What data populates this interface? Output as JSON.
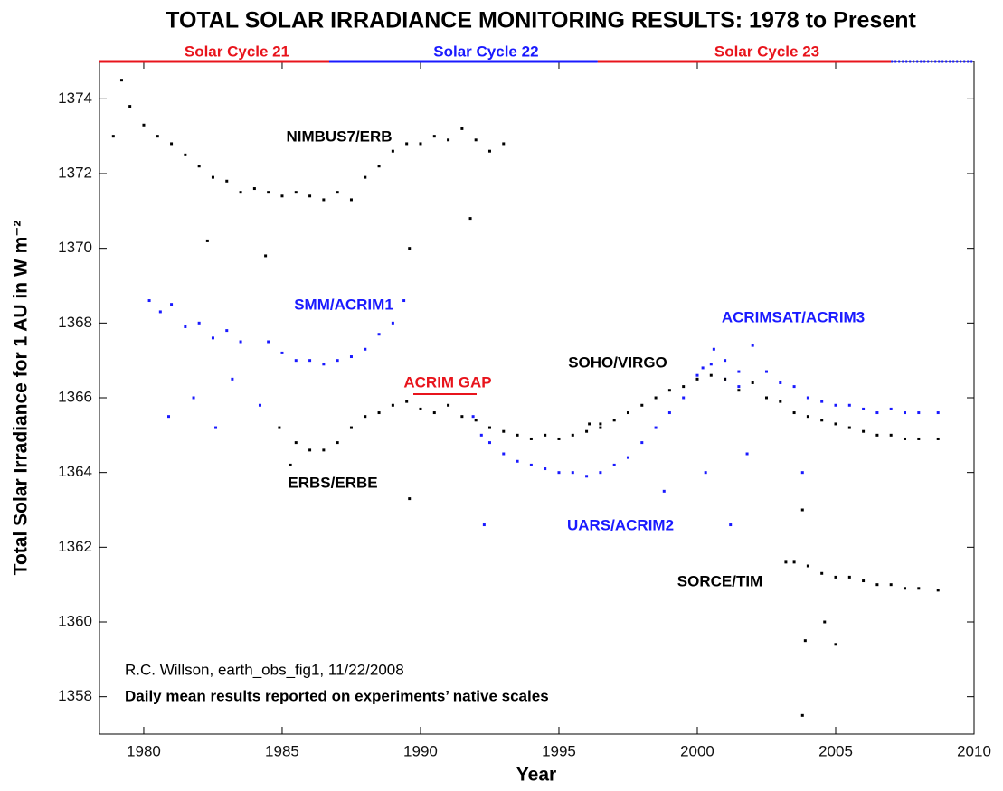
{
  "chart_data": {
    "type": "scatter",
    "title": "TOTAL SOLAR IRRADIANCE MONITORING RESULTS: 1978 to Present",
    "xlabel": "Year",
    "ylabel": "Total Solar Irradiance for 1 AU in W m⁻²",
    "xlim": [
      1978.4,
      2010
    ],
    "ylim": [
      1357,
      1375
    ],
    "xticks": [
      1980,
      1985,
      1990,
      1995,
      2000,
      2005,
      2010
    ],
    "yticks": [
      1358,
      1360,
      1362,
      1364,
      1366,
      1368,
      1370,
      1372,
      1374
    ],
    "cycles": [
      {
        "name": "Solar Cycle 21",
        "start": 1978.4,
        "end": 1986.7,
        "color": "#e8141c"
      },
      {
        "name": "Solar Cycle 22",
        "start": 1986.7,
        "end": 1996.4,
        "color": "#1a1aff"
      },
      {
        "name": "Solar Cycle 23",
        "start": 1996.4,
        "end": 2007,
        "color": "#e8141c"
      },
      {
        "start": 2007,
        "end": 2010,
        "color": "#1a1aff",
        "dotted": true
      }
    ],
    "annotations": [
      {
        "text": "ACRIM GAP",
        "color": "#e8141c"
      }
    ],
    "notes": [
      "R.C. Willson, earth_obs_fig1, 11/22/2008",
      "Daily mean results reported on experiments’ native scales"
    ],
    "series": [
      {
        "name": "NIMBUS7/ERB",
        "color": "#000000",
        "x": [
          1978.9,
          1979.2,
          1979.5,
          1980,
          1980.5,
          1981,
          1981.5,
          1982,
          1982.5,
          1983,
          1983.5,
          1984,
          1984.5,
          1985,
          1985.5,
          1986,
          1986.5,
          1987,
          1987.5,
          1988,
          1988.5,
          1989,
          1989.5,
          1990,
          1990.5,
          1991,
          1991.5,
          1992,
          1992.5,
          1993,
          1982.3,
          1984.4,
          1989.6,
          1991.8
        ],
        "values": [
          1373.0,
          1374.5,
          1373.8,
          1373.3,
          1373.0,
          1372.8,
          1372.5,
          1372.2,
          1371.9,
          1371.8,
          1371.5,
          1371.6,
          1371.5,
          1371.4,
          1371.5,
          1371.4,
          1371.3,
          1371.5,
          1371.3,
          1371.9,
          1372.2,
          1372.6,
          1372.8,
          1372.8,
          1373.0,
          1372.9,
          1373.2,
          1372.9,
          1372.6,
          1372.8,
          1370.2,
          1369.8,
          1370.0,
          1370.8
        ]
      },
      {
        "name": "SMM/ACRIM1",
        "color": "#1a1aff",
        "x": [
          1980.2,
          1980.6,
          1981,
          1981.5,
          1982,
          1982.5,
          1983,
          1983.5,
          1984.5,
          1985,
          1985.5,
          1986,
          1986.5,
          1987,
          1987.5,
          1988,
          1988.5,
          1989,
          1989.4,
          1980.9,
          1981.8,
          1982.6,
          1983.2,
          1984.2
        ],
        "values": [
          1368.6,
          1368.3,
          1368.5,
          1367.9,
          1368.0,
          1367.6,
          1367.8,
          1367.5,
          1367.5,
          1367.2,
          1367.0,
          1367.0,
          1366.9,
          1367.0,
          1367.1,
          1367.3,
          1367.7,
          1368.0,
          1368.6,
          1365.5,
          1366.0,
          1365.2,
          1366.5,
          1365.8
        ]
      },
      {
        "name": "ERBS/ERBE",
        "color": "#000000",
        "x": [
          1984.9,
          1985.5,
          1986,
          1986.5,
          1987,
          1987.5,
          1988,
          1988.5,
          1989,
          1989.5,
          1990,
          1990.5,
          1991,
          1991.5,
          1992,
          1992.5,
          1993,
          1993.5,
          1994,
          1994.5,
          1995,
          1995.5,
          1996,
          1996.5,
          1989.6,
          1985.3
        ],
        "values": [
          1365.2,
          1364.8,
          1364.6,
          1364.6,
          1364.8,
          1365.2,
          1365.5,
          1365.6,
          1365.8,
          1365.9,
          1365.7,
          1365.6,
          1365.8,
          1365.5,
          1365.4,
          1365.2,
          1365.1,
          1365.0,
          1364.9,
          1365.0,
          1364.9,
          1365.0,
          1365.1,
          1365.2,
          1363.3,
          1364.2
        ]
      },
      {
        "name": "UARS/ACRIM2",
        "color": "#1a1aff",
        "x": [
          1991.9,
          1992.2,
          1992.5,
          1993,
          1993.5,
          1994,
          1994.5,
          1995,
          1995.5,
          1996,
          1996.5,
          1997,
          1997.5,
          1998,
          1998.5,
          1999,
          1999.5,
          2000,
          2000.5,
          2001,
          2001.5,
          1992.3,
          1998.8,
          2000.3,
          2001.2
        ],
        "values": [
          1365.5,
          1365.0,
          1364.8,
          1364.5,
          1364.3,
          1364.2,
          1364.1,
          1364.0,
          1364.0,
          1363.9,
          1364.0,
          1364.2,
          1364.4,
          1364.8,
          1365.2,
          1365.6,
          1366.0,
          1366.6,
          1366.9,
          1366.5,
          1366.3,
          1362.6,
          1363.5,
          1364.0,
          1362.6
        ]
      },
      {
        "name": "SOHO/VIRGO",
        "color": "#000000",
        "x": [
          1996.1,
          1996.5,
          1997,
          1997.5,
          1998,
          1998.5,
          1999,
          1999.5,
          2000,
          2000.5,
          2001,
          2001.5,
          2002,
          2002.5,
          2003,
          2003.5,
          2004,
          2004.5,
          2005,
          2005.5,
          2006,
          2006.5,
          2007,
          2007.5,
          2008,
          2008.7,
          2003.8
        ],
        "values": [
          1365.3,
          1365.3,
          1365.4,
          1365.6,
          1365.8,
          1366.0,
          1366.2,
          1366.3,
          1366.5,
          1366.6,
          1366.5,
          1366.2,
          1366.4,
          1366.0,
          1365.9,
          1365.6,
          1365.5,
          1365.4,
          1365.3,
          1365.2,
          1365.1,
          1365.0,
          1365.0,
          1364.9,
          1364.9,
          1364.9,
          1363.0
        ]
      },
      {
        "name": "ACRIMSAT/ACRIM3",
        "color": "#1a1aff",
        "x": [
          2000.2,
          2000.6,
          2001,
          2001.5,
          2002,
          2002.5,
          2003,
          2003.5,
          2004,
          2004.5,
          2005,
          2005.5,
          2006,
          2006.5,
          2007,
          2007.5,
          2008,
          2008.7,
          2003.8,
          2001.8
        ],
        "values": [
          1366.8,
          1367.3,
          1367.0,
          1366.7,
          1367.4,
          1366.7,
          1366.4,
          1366.3,
          1366.0,
          1365.9,
          1365.8,
          1365.8,
          1365.7,
          1365.6,
          1365.7,
          1365.6,
          1365.6,
          1365.6,
          1364.0,
          1364.5
        ]
      },
      {
        "name": "SORCE/TIM",
        "color": "#000000",
        "x": [
          2003.2,
          2003.5,
          2004,
          2004.5,
          2005,
          2005.5,
          2006,
          2006.5,
          2007,
          2007.5,
          2008,
          2008.7,
          2003.8,
          2003.9,
          2004.6,
          2005.0
        ],
        "values": [
          1361.6,
          1361.6,
          1361.5,
          1361.3,
          1361.2,
          1361.2,
          1361.1,
          1361.0,
          1361.0,
          1360.9,
          1360.9,
          1360.85,
          1357.5,
          1359.5,
          1360.0,
          1359.4
        ]
      }
    ]
  }
}
